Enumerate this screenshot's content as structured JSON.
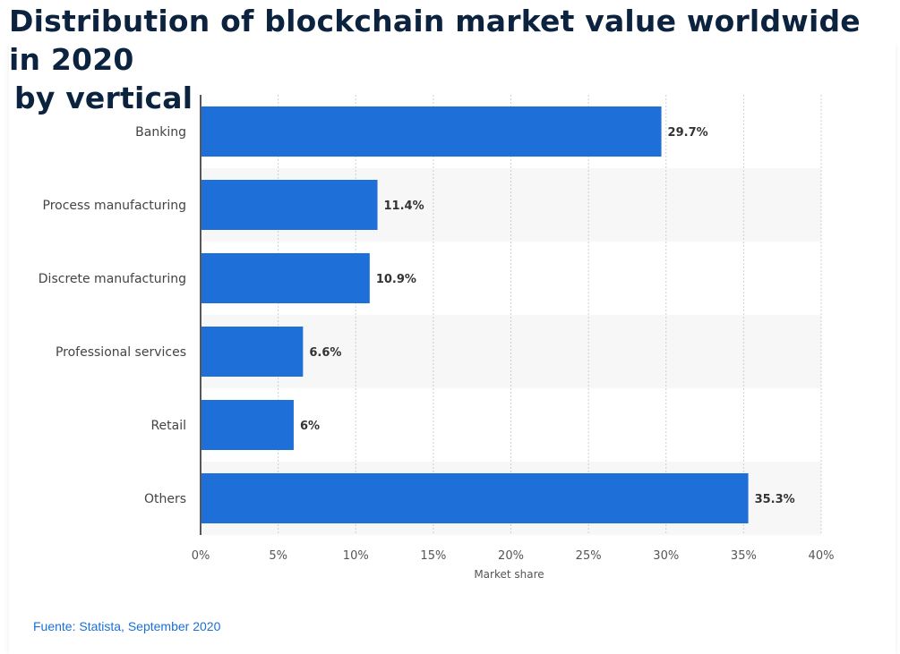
{
  "header": {
    "title_line1": "Distribution of blockchain market value worldwide in 2020",
    "title_line2": "by vertical"
  },
  "footer": {
    "source": "Fuente: Statista, September 2020"
  },
  "colors": {
    "bar": "#1f6fd9",
    "band": "#f7f7f7",
    "grid": "#cfcfcf",
    "axis": "#222222"
  },
  "chart_data": {
    "type": "bar",
    "orientation": "horizontal",
    "categories": [
      "Banking",
      "Process manufacturing",
      "Discrete manufacturing",
      "Professional services",
      "Retail",
      "Others"
    ],
    "values": [
      29.7,
      11.4,
      10.9,
      6.6,
      6,
      35.3
    ],
    "value_labels": [
      "29.7%",
      "11.4%",
      "10.9%",
      "6.6%",
      "6%",
      "35.3%"
    ],
    "xlabel": "Market share",
    "ylabel": "",
    "xlim": [
      0,
      40
    ],
    "ticks": [
      0,
      5,
      10,
      15,
      20,
      25,
      30,
      35,
      40
    ],
    "tick_labels": [
      "0%",
      "5%",
      "10%",
      "15%",
      "20%",
      "25%",
      "30%",
      "35%",
      "40%"
    ],
    "grid": true,
    "legend": "none"
  }
}
